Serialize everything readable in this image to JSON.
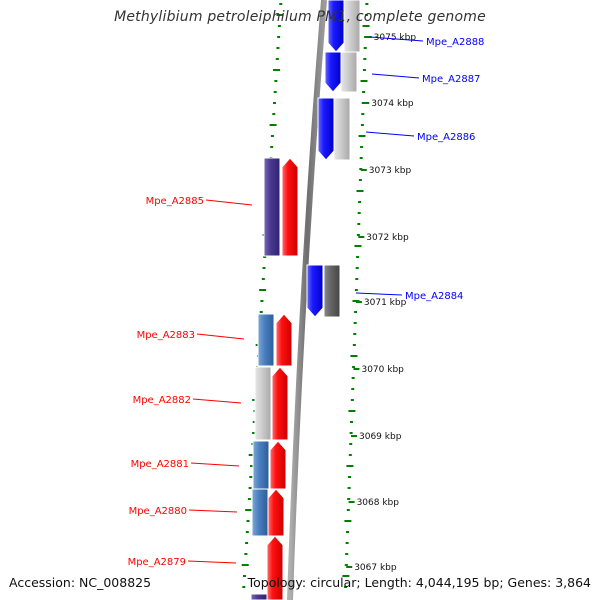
{
  "title": "Methylibium petroleiphilum PM1, complete genome",
  "footer": {
    "accession": "Accession: NC_008825",
    "summary": "Topology: circular; Length: 4,044,195 bp; Genes: 3,864"
  },
  "colors": {
    "forward_strand": "#ff0000",
    "reverse_strand": "#0000ff",
    "gc_content_ticks": "#008000",
    "backbone": "#808080"
  },
  "scale_ticks": [
    "3075 kbp",
    "3074 kbp",
    "3073 kbp",
    "3072 kbp",
    "3071 kbp",
    "3070 kbp",
    "3069 kbp",
    "3068 kbp",
    "3067 kbp"
  ],
  "reverse_genes": [
    {
      "label": "Mpe_A2888",
      "color": "#0000ff"
    },
    {
      "label": "Mpe_A2887",
      "color": "#0000ff"
    },
    {
      "label": "Mpe_A2886",
      "color": "#0000ff"
    },
    {
      "label": "Mpe_A2884",
      "color": "#0000ff"
    }
  ],
  "forward_genes": [
    {
      "label": "Mpe_A2885",
      "color": "#ff0000"
    },
    {
      "label": "Mpe_A2883",
      "color": "#ff0000"
    },
    {
      "label": "Mpe_A2882",
      "color": "#ff0000"
    },
    {
      "label": "Mpe_A2881",
      "color": "#ff0000"
    },
    {
      "label": "Mpe_A2880",
      "color": "#ff0000"
    },
    {
      "label": "Mpe_A2879",
      "color": "#ff0000"
    }
  ]
}
